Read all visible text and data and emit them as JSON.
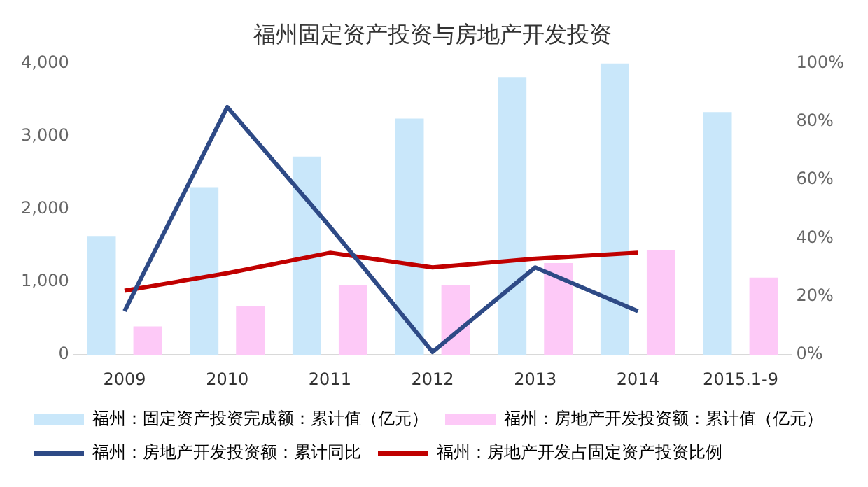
{
  "chart_data": {
    "type": "bar",
    "title": "福州固定资产投资与房地产开发投资",
    "categories": [
      "2009",
      "2010",
      "2011",
      "2012",
      "2013",
      "2014",
      "2015.1-9"
    ],
    "series": [
      {
        "name": "福州：固定资产投资完成额：累计值（亿元）",
        "color": "#c9e7fa",
        "values": [
          1630,
          2300,
          2720,
          3240,
          3810,
          4000,
          3330
        ]
      },
      {
        "name": "福州：房地产开发投资额：累计值（亿元）",
        "color": "#fdc9f7",
        "values": [
          390,
          670,
          960,
          960,
          1260,
          1440,
          1060
        ]
      },
      {
        "name": "福州：房地产开发投资额：累计同比",
        "type": "line",
        "axis": "y2",
        "color": "#2e4a86",
        "values": [
          15,
          85,
          44,
          1,
          30,
          15,
          null
        ]
      },
      {
        "name": "福州：房地产开发占固定资产投资比例",
        "type": "line",
        "axis": "y2",
        "color": "#c00000",
        "values": [
          22,
          28,
          35,
          30,
          33,
          35,
          null
        ]
      }
    ],
    "ylim": [
      0,
      4000
    ],
    "yticks": [
      {
        "value": 0,
        "label": "0"
      },
      {
        "value": 1000,
        "label": "1,000"
      },
      {
        "value": 2000,
        "label": "2,000"
      },
      {
        "value": 3000,
        "label": "3,000"
      },
      {
        "value": 4000,
        "label": "4,000"
      }
    ],
    "y2lim": [
      0,
      100
    ],
    "y2ticks": [
      {
        "value": 0,
        "label": "0%"
      },
      {
        "value": 20,
        "label": "20%"
      },
      {
        "value": 40,
        "label": "40%"
      },
      {
        "value": 60,
        "label": "60%"
      },
      {
        "value": 80,
        "label": "80%"
      },
      {
        "value": 100,
        "label": "100%"
      }
    ],
    "grid": false,
    "legend": "bottom",
    "marker": "none"
  }
}
